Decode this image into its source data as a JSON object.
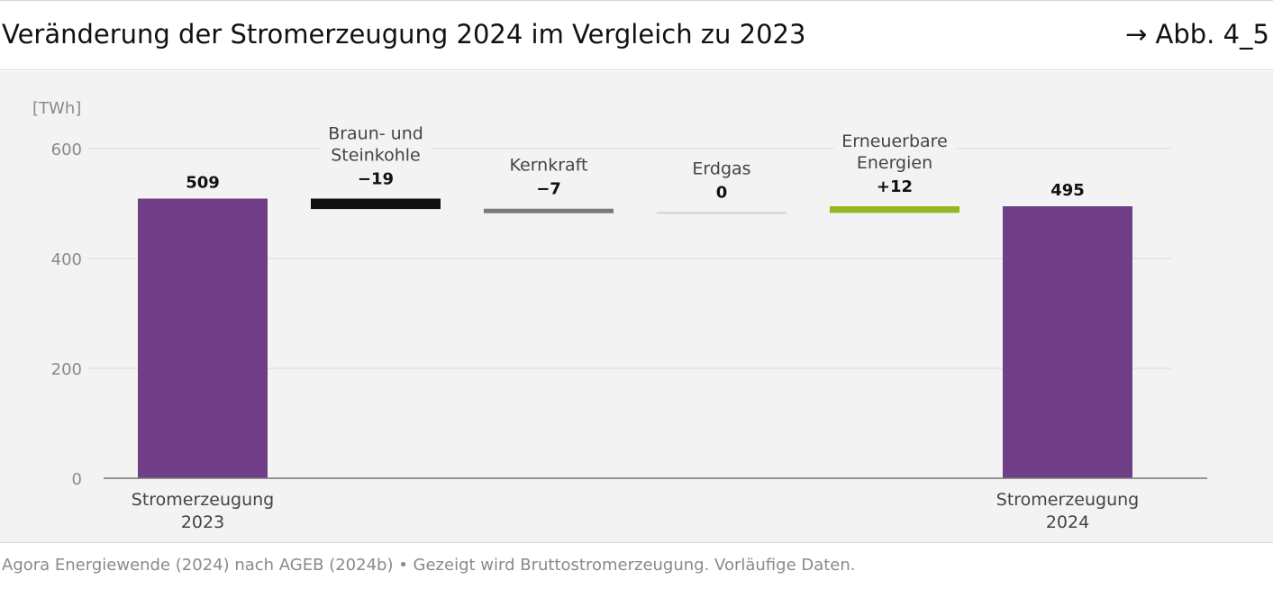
{
  "header": {
    "title": "Veränderung der Stromerzeugung 2024 im Vergleich zu 2023",
    "figure_ref": "→ Abb. 4_5"
  },
  "footer": {
    "source": "Agora Energiewende (2024) nach AGEB (2024b) • Gezeigt wird Bruttostromerzeugung. Vorläufige Daten."
  },
  "chart_data": {
    "type": "bar",
    "subtype": "waterfall",
    "unit_label": "[TWh]",
    "ylim": [
      0,
      600
    ],
    "yticks": [
      0,
      200,
      400,
      600
    ],
    "grid": true,
    "categories": [
      {
        "label_lines": [
          "Stromerzeugung",
          "2023"
        ],
        "label_position": "bottom",
        "kind": "total",
        "value": 509,
        "value_label": "509",
        "color": "#703e87"
      },
      {
        "label_lines": [
          "Braun- und",
          "Steinkohle"
        ],
        "label_position": "top",
        "kind": "delta",
        "value": -19,
        "value_label": "−19",
        "color": "#111111"
      },
      {
        "label_lines": [
          "Kernkraft"
        ],
        "label_position": "top",
        "kind": "delta",
        "value": -7,
        "value_label": "−7",
        "color": "#7a7a7a"
      },
      {
        "label_lines": [
          "Erdgas"
        ],
        "label_position": "top",
        "kind": "delta",
        "value": 0,
        "value_label": "0",
        "color": "#d0d0d0"
      },
      {
        "label_lines": [
          "Erneuerbare",
          "Energien"
        ],
        "label_position": "top",
        "kind": "delta",
        "value": 12,
        "value_label": "+12",
        "color": "#95b523"
      },
      {
        "label_lines": [
          "Stromerzeugung",
          "2024"
        ],
        "label_position": "bottom",
        "kind": "total",
        "value": 495,
        "value_label": "495",
        "color": "#703e87"
      }
    ]
  }
}
